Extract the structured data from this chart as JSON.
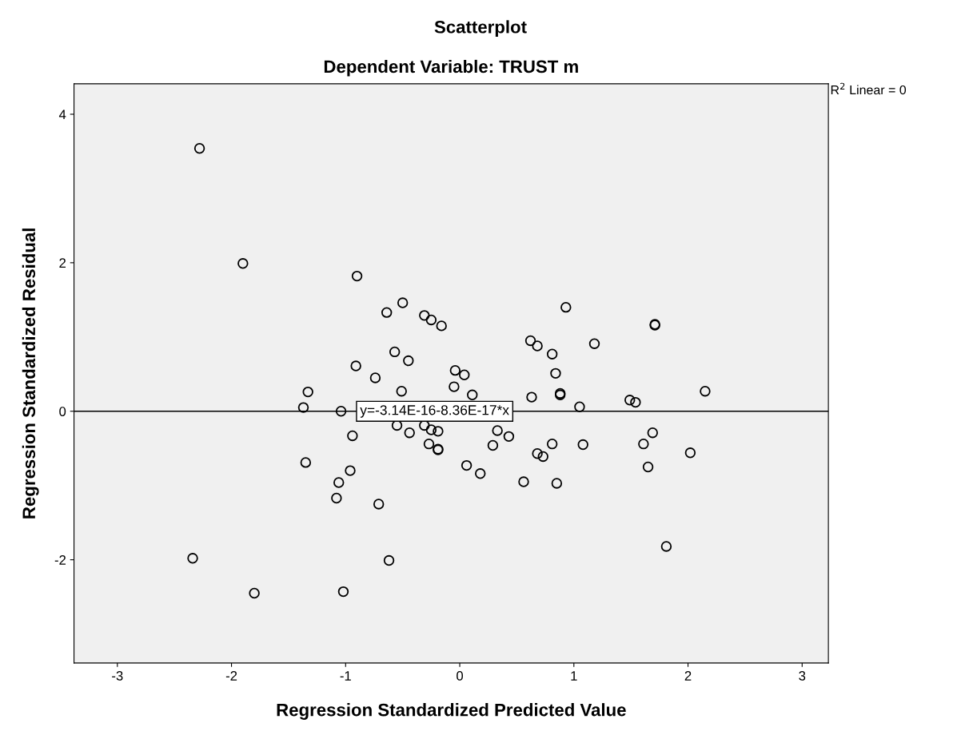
{
  "chart_data": {
    "type": "scatter",
    "title": "Scatterplot",
    "subtitle": "Dependent Variable: TRUST m",
    "xlabel": "Regression Standardized Predicted Value",
    "ylabel": "Regression Standardized Residual",
    "xlim": [
      -3.38,
      3.23
    ],
    "ylim": [
      -3.39,
      4.41
    ],
    "xticks": [
      -3,
      -2,
      -1,
      0,
      1,
      2,
      3
    ],
    "yticks": [
      -2,
      0,
      2,
      4
    ],
    "grid": false,
    "annotations": [
      {
        "text": "y=-3.14E-16-8.36E-17*x",
        "x": -0.22,
        "y": 0
      },
      "R$^{2}$ Linear = 0"
    ],
    "series": [
      {
        "color": "#000000",
        "marker": "circle",
        "x": [
          -2.28,
          -1.9,
          -0.9,
          -0.5,
          -0.64,
          -0.31,
          -0.25,
          -0.16,
          0.93,
          1.71,
          1.71,
          1.18,
          0.62,
          0.68,
          0.81,
          0.84,
          0.88,
          0.88,
          1.05,
          1.49,
          1.54,
          2.15,
          1.69,
          1.61,
          2.02,
          1.65,
          1.08,
          0.81,
          0.68,
          0.73,
          0.56,
          0.85,
          0.06,
          0.18,
          0.29,
          0.33,
          0.43,
          -0.05,
          -0.04,
          0.04,
          0.11,
          0.63,
          -0.57,
          -0.45,
          -0.91,
          -0.74,
          -0.51,
          -1.33,
          -1.37,
          -1.04,
          -0.94,
          -0.55,
          -0.44,
          -0.31,
          -0.25,
          -0.19,
          -0.27,
          -0.19,
          -0.19,
          -1.35,
          -0.96,
          -1.06,
          -1.08,
          -0.71,
          -2.34,
          -1.8,
          -1.02,
          -0.62,
          1.81
        ],
        "values": [
          3.54,
          1.99,
          1.82,
          1.46,
          1.33,
          1.29,
          1.23,
          1.15,
          1.4,
          1.17,
          1.16,
          0.91,
          0.95,
          0.88,
          0.77,
          0.51,
          0.24,
          0.22,
          0.06,
          0.15,
          0.12,
          0.27,
          -0.29,
          -0.44,
          -0.56,
          -0.75,
          -0.45,
          -0.44,
          -0.57,
          -0.61,
          -0.95,
          -0.97,
          -0.73,
          -0.84,
          -0.46,
          -0.26,
          -0.34,
          0.33,
          0.55,
          0.49,
          0.22,
          0.19,
          0.8,
          0.68,
          0.61,
          0.45,
          0.27,
          0.26,
          0.05,
          0.0,
          -0.33,
          -0.19,
          -0.29,
          -0.19,
          -0.25,
          -0.27,
          -0.44,
          -0.52,
          -0.51,
          -0.69,
          -0.8,
          -0.96,
          -1.17,
          -1.25,
          -1.98,
          -2.45,
          -2.43,
          -2.01,
          -1.82
        ]
      },
      {
        "type": "line",
        "color": "#000000",
        "x": [
          -3.38,
          3.23
        ],
        "values": [
          0,
          0
        ],
        "line_style": "solid",
        "marker": "none"
      }
    ]
  }
}
